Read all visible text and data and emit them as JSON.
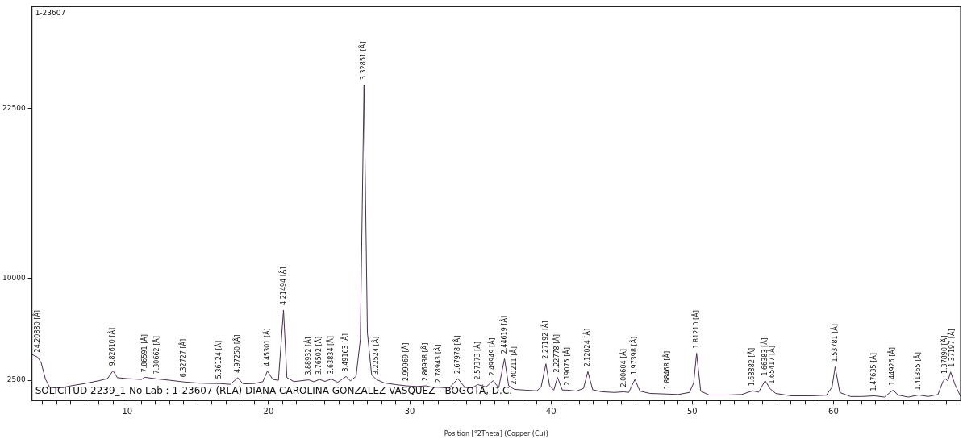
{
  "chart_data": {
    "type": "line",
    "xlabel": "Position [°2Theta] (Copper (Cu))",
    "color": "#4b2e4f",
    "marker": "none",
    "line_style": "solid",
    "grid": false,
    "legend": false,
    "xlim": [
      3.25,
      69
    ],
    "xticks": [
      {
        "value": 4,
        "label": null
      },
      {
        "value": 5,
        "label": null
      },
      {
        "value": 6,
        "label": null
      },
      {
        "value": 7,
        "label": null
      },
      {
        "value": 8,
        "label": null
      },
      {
        "value": 9,
        "label": null
      },
      10,
      {
        "value": 11,
        "label": null
      },
      {
        "value": 12,
        "label": null
      },
      {
        "value": 13,
        "label": null
      },
      {
        "value": 14,
        "label": null
      },
      {
        "value": 15,
        "label": null
      },
      {
        "value": 16,
        "label": null
      },
      {
        "value": 17,
        "label": null
      },
      {
        "value": 18,
        "label": null
      },
      {
        "value": 19,
        "label": null
      },
      20,
      {
        "value": 21,
        "label": null
      },
      {
        "value": 22,
        "label": null
      },
      {
        "value": 23,
        "label": null
      },
      {
        "value": 24,
        "label": null
      },
      {
        "value": 25,
        "label": null
      },
      {
        "value": 26,
        "label": null
      },
      {
        "value": 27,
        "label": null
      },
      {
        "value": 28,
        "label": null
      },
      {
        "value": 29,
        "label": null
      },
      30,
      {
        "value": 31,
        "label": null
      },
      {
        "value": 32,
        "label": null
      },
      {
        "value": 33,
        "label": null
      },
      {
        "value": 34,
        "label": null
      },
      {
        "value": 35,
        "label": null
      },
      {
        "value": 36,
        "label": null
      },
      {
        "value": 37,
        "label": null
      },
      {
        "value": 38,
        "label": null
      },
      {
        "value": 39,
        "label": null
      },
      40,
      {
        "value": 41,
        "label": null
      },
      {
        "value": 42,
        "label": null
      },
      {
        "value": 43,
        "label": null
      },
      {
        "value": 44,
        "label": null
      },
      {
        "value": 45,
        "label": null
      },
      {
        "value": 46,
        "label": null
      },
      {
        "value": 47,
        "label": null
      },
      {
        "value": 48,
        "label": null
      },
      {
        "value": 49,
        "label": null
      },
      50,
      {
        "value": 51,
        "label": null
      },
      {
        "value": 52,
        "label": null
      },
      {
        "value": 53,
        "label": null
      },
      {
        "value": 54,
        "label": null
      },
      {
        "value": 55,
        "label": null
      },
      {
        "value": 56,
        "label": null
      },
      {
        "value": 57,
        "label": null
      },
      {
        "value": 58,
        "label": null
      },
      {
        "value": 59,
        "label": null
      },
      60,
      {
        "value": 61,
        "label": null
      },
      {
        "value": 62,
        "label": null
      },
      {
        "value": 63,
        "label": null
      },
      {
        "value": 64,
        "label": null
      },
      {
        "value": 65,
        "label": null
      },
      {
        "value": 66,
        "label": null
      },
      {
        "value": 67,
        "label": null
      },
      {
        "value": 68,
        "label": null
      },
      {
        "value": 69,
        "label": null
      }
    ],
    "ylim": [
      1000,
      30000
    ],
    "yticks": [
      2500,
      10000,
      22500
    ],
    "x": [
      3.25,
      3.65,
      3.9,
      4.2,
      4.5,
      5.0,
      5.5,
      6.0,
      7.0,
      8.0,
      8.6,
      8.99,
      9.3,
      10.0,
      11.0,
      11.24,
      12.1,
      13.0,
      13.98,
      15.0,
      16.0,
      16.52,
      17.3,
      17.82,
      18.2,
      19.0,
      19.6,
      19.92,
      20.3,
      20.7,
      21.06,
      21.3,
      21.8,
      22.85,
      23.2,
      23.61,
      24.0,
      24.45,
      24.9,
      25.49,
      25.8,
      26.2,
      26.5,
      26.76,
      27.0,
      27.3,
      27.64,
      28.2,
      29.0,
      29.76,
      30.5,
      31.15,
      31.6,
      32.06,
      32.8,
      33.41,
      33.9,
      34.4,
      34.83,
      35.4,
      35.9,
      36.3,
      36.71,
      37.0,
      37.41,
      38.2,
      39.0,
      39.3,
      39.64,
      39.9,
      40.2,
      40.46,
      40.8,
      41.18,
      41.8,
      42.3,
      42.61,
      42.95,
      43.6,
      44.5,
      45.16,
      45.5,
      45.94,
      46.3,
      47.0,
      48.25,
      49.0,
      49.8,
      50.1,
      50.31,
      50.6,
      51.2,
      52.5,
      53.5,
      54.28,
      54.7,
      55.16,
      55.51,
      55.9,
      57.0,
      58.5,
      59.5,
      59.9,
      60.12,
      60.45,
      61.2,
      62.0,
      62.9,
      63.6,
      64.22,
      64.6,
      65.3,
      66.04,
      66.7,
      67.4,
      67.75,
      67.92,
      68.1,
      68.3,
      68.6,
      69.0
    ],
    "values": [
      4400,
      4200,
      3800,
      2600,
      1980,
      1930,
      1980,
      2090,
      2260,
      2470,
      2620,
      3210,
      2690,
      2620,
      2560,
      2720,
      2600,
      2500,
      2380,
      2290,
      2260,
      2260,
      2200,
      2690,
      2230,
      2260,
      2400,
      3180,
      2560,
      2500,
      7670,
      2700,
      2400,
      2530,
      2390,
      2560,
      2420,
      2590,
      2350,
      2780,
      2450,
      2800,
      5500,
      24270,
      6000,
      2900,
      2560,
      2300,
      2180,
      2090,
      2040,
      2090,
      1980,
      1980,
      1930,
      2620,
      1980,
      1930,
      2180,
      2000,
      2470,
      1950,
      4090,
      2100,
      1830,
      1770,
      1720,
      2000,
      3710,
      2100,
      1770,
      2720,
      1780,
      1770,
      1700,
      1900,
      3140,
      1800,
      1650,
      1600,
      1650,
      1600,
      2560,
      1700,
      1530,
      1480,
      1450,
      1600,
      2300,
      4490,
      1700,
      1410,
      1410,
      1450,
      1720,
      1620,
      2470,
      1880,
      1530,
      1350,
      1350,
      1400,
      2000,
      3490,
      1600,
      1300,
      1300,
      1350,
      1260,
      1770,
      1400,
      1260,
      1410,
      1300,
      1450,
      2400,
      2620,
      2450,
      3110,
      2200,
      1300
    ],
    "annotations": [
      "1-23607",
      "SOLICITUD 2239_1 No Lab : 1-23607 (RLA) DIANA CAROLINA GONZALEZ VASQUEZ - BOGOTÁ, D.C.",
      {
        "text": "24.20880 [Å]",
        "x": 3.65,
        "y": 4200
      },
      {
        "text": "9.82610 [Å]",
        "x": 8.99,
        "y": 3210
      },
      {
        "text": "7.86591 [Å]",
        "x": 11.24,
        "y": 2720
      },
      {
        "text": "7.30662 [Å]",
        "x": 12.1,
        "y": 2600
      },
      {
        "text": "6.32727 [Å]",
        "x": 13.98,
        "y": 2380
      },
      {
        "text": "5.36124 [Å]",
        "x": 16.52,
        "y": 2260
      },
      {
        "text": "4.97250 [Å]",
        "x": 17.82,
        "y": 2690
      },
      {
        "text": "4.45301 [Å]",
        "x": 19.92,
        "y": 3180
      },
      {
        "text": "4.21494 [Å]",
        "x": 21.06,
        "y": 7670
      },
      {
        "text": "3.88932 [Å]",
        "x": 22.85,
        "y": 2530
      },
      {
        "text": "3.76502 [Å]",
        "x": 23.61,
        "y": 2560
      },
      {
        "text": "3.63834 [Å]",
        "x": 24.45,
        "y": 2590
      },
      {
        "text": "3.49163 [Å]",
        "x": 25.49,
        "y": 2780
      },
      {
        "text": "3.32851 [Å]",
        "x": 26.76,
        "y": 24270
      },
      {
        "text": "3.22524 [Å]",
        "x": 27.64,
        "y": 2560
      },
      {
        "text": "2.99969 [Å]",
        "x": 29.76,
        "y": 2090
      },
      {
        "text": "2.86938 [Å]",
        "x": 31.15,
        "y": 2090
      },
      {
        "text": "2.78943 [Å]",
        "x": 32.06,
        "y": 1980
      },
      {
        "text": "2.67978 [Å]",
        "x": 33.41,
        "y": 2620
      },
      {
        "text": "2.57373 [Å]",
        "x": 34.83,
        "y": 2180
      },
      {
        "text": "2.49949 [Å]",
        "x": 35.9,
        "y": 2470
      },
      {
        "text": "2.44619 [Å]",
        "x": 36.71,
        "y": 4090
      },
      {
        "text": "2.40211 [Å]",
        "x": 37.41,
        "y": 1830
      },
      {
        "text": "2.27192 [Å]",
        "x": 39.64,
        "y": 3710
      },
      {
        "text": "2.22778 [Å]",
        "x": 40.46,
        "y": 2720
      },
      {
        "text": "2.19075 [Å]",
        "x": 41.18,
        "y": 1770
      },
      {
        "text": "2.12024 [Å]",
        "x": 42.61,
        "y": 3140
      },
      {
        "text": "2.00604 [Å]",
        "x": 45.16,
        "y": 1650
      },
      {
        "text": "1.97398 [Å]",
        "x": 45.94,
        "y": 2560
      },
      {
        "text": "1.88468 [Å]",
        "x": 48.25,
        "y": 1480
      },
      {
        "text": "1.81210 [Å]",
        "x": 50.31,
        "y": 4490
      },
      {
        "text": "1.68882 [Å]",
        "x": 54.28,
        "y": 1720
      },
      {
        "text": "1.66383 [Å]",
        "x": 55.16,
        "y": 2470
      },
      {
        "text": "1.65417 [Å]",
        "x": 55.51,
        "y": 1880
      },
      {
        "text": "1.53781 [Å]",
        "x": 60.12,
        "y": 3490
      },
      {
        "text": "1.47635 [Å]",
        "x": 62.9,
        "y": 1350
      },
      {
        "text": "1.44926 [Å]",
        "x": 64.22,
        "y": 1770
      },
      {
        "text": "1.41365 [Å]",
        "x": 66.04,
        "y": 1410
      },
      {
        "text": "1.37890 [Å]",
        "x": 67.92,
        "y": 2620
      },
      {
        "text": "1.37197 [Å]",
        "x": 68.3,
        "y": 3110
      }
    ]
  }
}
